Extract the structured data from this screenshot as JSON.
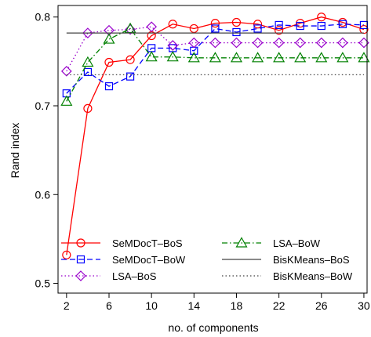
{
  "chart_data": {
    "type": "line",
    "xlabel": "no. of components",
    "ylabel": "Rand index",
    "x_ticks": [
      2,
      6,
      10,
      14,
      18,
      22,
      26,
      30
    ],
    "y_ticks": [
      0.5,
      0.6,
      0.7,
      0.8
    ],
    "y_tick_labels": [
      "0.5",
      "0.6",
      "0.7",
      "0.8"
    ],
    "xlim": [
      1.2,
      30.3
    ],
    "ylim": [
      0.489,
      0.813
    ],
    "grid": false,
    "legend_position": "bottom",
    "x": [
      2,
      4,
      6,
      8,
      10,
      12,
      14,
      16,
      18,
      20,
      22,
      24,
      26,
      28,
      30
    ],
    "series": [
      {
        "name": "SeMDocT–BoS",
        "color": "#ff0000",
        "marker": "circle",
        "linestyle": "solid",
        "values": [
          0.532,
          0.697,
          0.749,
          0.752,
          0.779,
          0.792,
          0.787,
          0.793,
          0.794,
          0.792,
          0.785,
          0.793,
          0.8,
          0.794,
          0.786
        ]
      },
      {
        "name": "SeMDocT–BoW",
        "color": "#0000ff",
        "marker": "square",
        "linestyle": "dashed",
        "values": [
          0.714,
          0.738,
          0.722,
          0.733,
          0.765,
          0.765,
          0.762,
          0.787,
          0.783,
          0.787,
          0.791,
          0.79,
          0.79,
          0.792,
          0.791
        ]
      },
      {
        "name": "LSA–BoS",
        "color": "#9900cc",
        "marker": "diamond",
        "linestyle": "dotted",
        "values": [
          0.739,
          0.782,
          0.785,
          0.786,
          0.789,
          0.768,
          0.771,
          0.771,
          0.771,
          0.771,
          0.771,
          0.771,
          0.771,
          0.771,
          0.771
        ]
      },
      {
        "name": "LSA–BoW",
        "color": "#008000",
        "marker": "triangle",
        "linestyle": "dashdot",
        "values": [
          0.705,
          0.749,
          0.775,
          0.787,
          0.755,
          0.755,
          0.754,
          0.754,
          0.754,
          0.754,
          0.754,
          0.754,
          0.754,
          0.754,
          0.754
        ]
      },
      {
        "name": "BisKMeans–BoS",
        "color": "#444444",
        "marker": "none",
        "linestyle": "solid",
        "values": [
          0.782,
          0.782,
          0.782,
          0.782,
          0.782,
          0.782,
          0.782,
          0.782,
          0.782,
          0.782,
          0.782,
          0.782,
          0.782,
          0.782,
          0.782
        ]
      },
      {
        "name": "BisKMeans–BoW",
        "color": "#444444",
        "marker": "none",
        "linestyle": "dotted",
        "values": [
          0.735,
          0.735,
          0.735,
          0.735,
          0.735,
          0.735,
          0.735,
          0.735,
          0.735,
          0.735,
          0.735,
          0.735,
          0.735,
          0.735,
          0.735
        ]
      }
    ]
  }
}
